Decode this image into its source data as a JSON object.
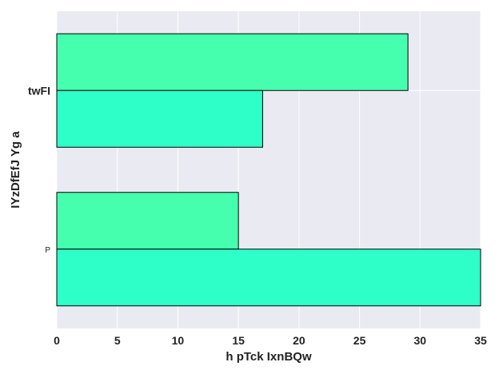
{
  "chart_data": {
    "type": "bar",
    "orientation": "horizontal",
    "categories": [
      "twFI",
      "P"
    ],
    "category_styles": [
      "bold",
      "small"
    ],
    "series": [
      {
        "color": "#46ffae",
        "values": [
          29,
          15
        ]
      },
      {
        "color": "#2effc8",
        "values": [
          17,
          35
        ]
      }
    ],
    "xlabel": "h  pTck IxnBQw",
    "ylabel": "IYzDfEfJ Yg a",
    "xlim": [
      0,
      35
    ],
    "xticks": [
      0,
      5,
      10,
      15,
      20,
      25,
      30,
      35
    ],
    "grid": true,
    "colors": {
      "plot_background": "#eaeaf2",
      "grid": "#ffffff",
      "bar_edge": "#000000"
    }
  }
}
